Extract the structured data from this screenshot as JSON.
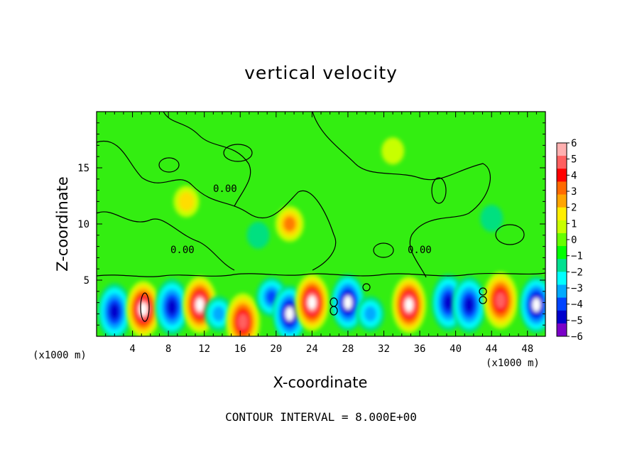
{
  "chart_data": {
    "type": "heatmap",
    "title": "vertical velocity",
    "xlabel": "X-coordinate",
    "ylabel": "Z-coordinate",
    "x_unit_label": "(x1000 m)",
    "x_ticks": [
      4,
      8,
      12,
      16,
      20,
      24,
      28,
      32,
      36,
      40,
      44,
      48
    ],
    "y_ticks": [
      5,
      10,
      15
    ],
    "xlim": [
      0,
      50
    ],
    "ylim": [
      0,
      20
    ],
    "colorbar": {
      "ticks": [
        6,
        5,
        4,
        3,
        2,
        1,
        0,
        -1,
        -2,
        -3,
        -4,
        -5,
        -6
      ],
      "tick_labels": [
        "6",
        "5",
        "4",
        "3",
        "2",
        "1",
        "0",
        "−1",
        "−2",
        "−3",
        "−4",
        "−5",
        "−6"
      ],
      "colors": [
        "#ffb0b0",
        "#ff6060",
        "#ff0000",
        "#ff6a00",
        "#ffa500",
        "#ffee00",
        "#c8ff00",
        "#66ff00",
        "#00ff00",
        "#00e090",
        "#00ffff",
        "#00aaff",
        "#0044ff",
        "#0000cc",
        "#7a00c8"
      ]
    },
    "contour_label": "0.00",
    "contour_interval_text": "CONTOUR INTERVAL = 8.000E+00",
    "anomalies": [
      {
        "x": 2.0,
        "z": 2.2,
        "value": -5
      },
      {
        "x": 5.2,
        "z": 2.4,
        "value": 6
      },
      {
        "x": 8.4,
        "z": 2.6,
        "value": -5
      },
      {
        "x": 11.5,
        "z": 2.8,
        "value": 6
      },
      {
        "x": 13.6,
        "z": 2.0,
        "value": -3
      },
      {
        "x": 16.3,
        "z": 1.3,
        "value": 5
      },
      {
        "x": 19.5,
        "z": 3.5,
        "value": -4
      },
      {
        "x": 21.5,
        "z": 2.0,
        "value": -6
      },
      {
        "x": 24.0,
        "z": 3.0,
        "value": 6
      },
      {
        "x": 28.0,
        "z": 3.0,
        "value": -6
      },
      {
        "x": 30.5,
        "z": 2.0,
        "value": -3
      },
      {
        "x": 34.8,
        "z": 2.8,
        "value": 6
      },
      {
        "x": 39.2,
        "z": 3.0,
        "value": -5
      },
      {
        "x": 41.5,
        "z": 2.8,
        "value": -5
      },
      {
        "x": 45.0,
        "z": 3.2,
        "value": 5
      },
      {
        "x": 49.0,
        "z": 2.8,
        "value": -6
      },
      {
        "x": 10.0,
        "z": 12.0,
        "value": 2
      },
      {
        "x": 21.5,
        "z": 10.0,
        "value": 3
      },
      {
        "x": 18.0,
        "z": 9.0,
        "value": -1
      },
      {
        "x": 44.0,
        "z": 10.5,
        "value": -1
      },
      {
        "x": 33.0,
        "z": 16.5,
        "value": 1
      }
    ]
  }
}
